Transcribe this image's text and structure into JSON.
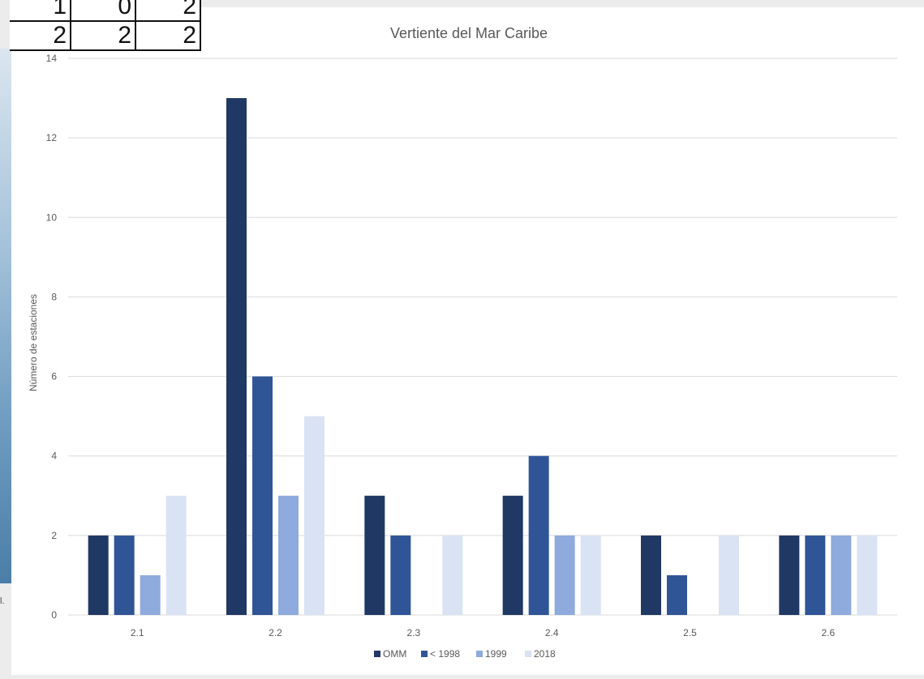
{
  "table": {
    "rows": [
      [
        "1",
        "0",
        "2"
      ],
      [
        "2",
        "2",
        "2"
      ]
    ]
  },
  "background_fragment": "l.",
  "chart_data": {
    "type": "bar",
    "title": "Vertiente del Mar Caribe",
    "xlabel": "",
    "ylabel": "Número de estaciones",
    "categories": [
      "2.1",
      "2.2",
      "2.3",
      "2.4",
      "2.5",
      "2.6"
    ],
    "ylim": [
      0,
      14
    ],
    "yticks": [
      "0",
      "2",
      "4",
      "6",
      "8",
      "10",
      "12",
      "14"
    ],
    "grid": true,
    "legend_position": "bottom",
    "series": [
      {
        "name": "OMM",
        "color": "#203864",
        "values": [
          2,
          13,
          3,
          3,
          2,
          2
        ]
      },
      {
        "name": "< 1998",
        "color": "#2f5597",
        "values": [
          2,
          6,
          2,
          4,
          1,
          2
        ]
      },
      {
        "name": "1999",
        "color": "#8faadc",
        "values": [
          1,
          3,
          0,
          2,
          0,
          2
        ]
      },
      {
        "name": "2018",
        "color": "#dae3f3",
        "values": [
          3,
          5,
          2,
          2,
          2,
          2
        ]
      }
    ]
  }
}
